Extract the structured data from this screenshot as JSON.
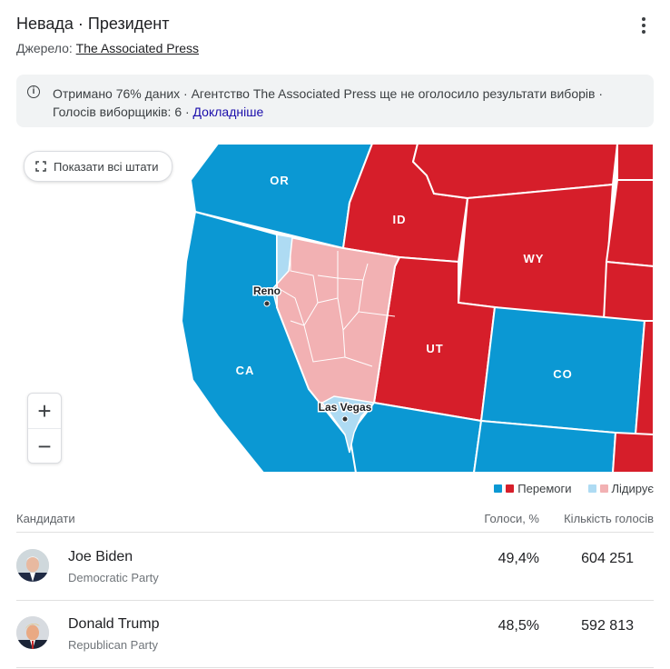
{
  "header": {
    "title": "Невада · Президент",
    "source_label": "Джерело:",
    "source_link": "The Associated Press"
  },
  "info": {
    "text": "Отримано 76% даних · Агентство The Associated Press ще не оголосило результати виборів · Голосів виборщиків: 6 ·",
    "more_link": "Докладніше"
  },
  "map": {
    "show_all_button": "Показати всі штати",
    "zoom_in": "+",
    "zoom_out": "−",
    "labels": {
      "or": "OR",
      "id": "ID",
      "wy": "WY",
      "ca": "CA",
      "ut": "UT",
      "co": "CO",
      "reno": "Reno",
      "las_vegas": "Las Vegas"
    },
    "colors": {
      "dem_won": "#0b98d3",
      "rep_won": "#d61e2a",
      "dem_leading": "#aedbf3",
      "rep_leading": "#f2b1b3"
    }
  },
  "legend": {
    "won_label": "Перемоги",
    "leading_label": "Лідирує"
  },
  "table": {
    "headers": {
      "candidates": "Кандидати",
      "percent": "Голоси, %",
      "votes": "Кількість голосів"
    },
    "rows": [
      {
        "name": "Joe Biden",
        "party": "Democratic Party",
        "percent": "49,4%",
        "votes": "604 251"
      },
      {
        "name": "Donald Trump",
        "party": "Republican Party",
        "percent": "48,5%",
        "votes": "592 813"
      }
    ]
  }
}
